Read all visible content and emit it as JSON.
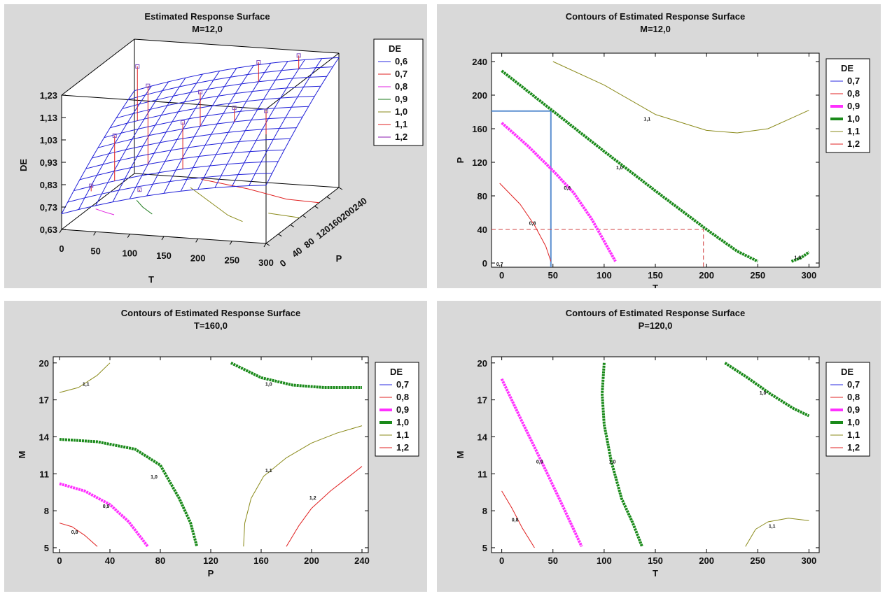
{
  "chart_data": [
    {
      "id": "surface3d",
      "type": "surface",
      "title": "Estimated Response Surface",
      "subtitle": "M=12,0",
      "xlabel": "T",
      "ylabel": "P",
      "zlabel": "DE",
      "xticks": [
        "0",
        "50",
        "100",
        "150",
        "200",
        "250",
        "300"
      ],
      "yticks": [
        "0",
        "40",
        "80",
        "120",
        "160",
        "200",
        "240"
      ],
      "zticks": [
        "0,63",
        "0,73",
        "0,83",
        "0,93",
        "1,03",
        "1,13",
        "1,23"
      ],
      "xlim": [
        0,
        300
      ],
      "ylim": [
        0,
        240
      ],
      "zlim": [
        0.63,
        1.23
      ],
      "legend": {
        "title": "DE",
        "entries": [
          {
            "label": "0,6",
            "color": "#2a2ae0"
          },
          {
            "label": "0,7",
            "color": "#e02020"
          },
          {
            "label": "0,8",
            "color": "#e020e0"
          },
          {
            "label": "0,9",
            "color": "#1a7a1a"
          },
          {
            "label": "1,0",
            "color": "#8a8a1a"
          },
          {
            "label": "1,1",
            "color": "#e02020"
          },
          {
            "label": "1,2",
            "color": "#8a1ab0"
          }
        ]
      }
    },
    {
      "id": "contourTP",
      "type": "contour",
      "title": "Contours of Estimated Response Surface",
      "subtitle": "M=12,0",
      "xlabel": "T",
      "ylabel": "P",
      "xlim": [
        -10,
        310
      ],
      "ylim": [
        -5,
        250
      ],
      "xticks": [
        0,
        50,
        100,
        150,
        200,
        250,
        300
      ],
      "yticks": [
        0,
        40,
        80,
        120,
        160,
        200,
        240
      ],
      "legend": {
        "title": "DE",
        "entries": [
          {
            "label": "0,7",
            "color": "#2a2ae0",
            "width": 1
          },
          {
            "label": "0,8",
            "color": "#e02020",
            "width": 1
          },
          {
            "label": "0,9",
            "color": "#ff30ff",
            "width": 4
          },
          {
            "label": "1,0",
            "color": "#1a8a1a",
            "width": 4
          },
          {
            "label": "1,1",
            "color": "#8a8a1a",
            "width": 1
          },
          {
            "label": "1,2",
            "color": "#e02020",
            "width": 1
          }
        ]
      },
      "contours": [
        {
          "level": "0,8",
          "color": "#e02020",
          "width": 1,
          "points": [
            [
              -2,
              95
            ],
            [
              18,
              70
            ],
            [
              32,
              45
            ],
            [
              43,
              20
            ],
            [
              48,
              2
            ]
          ],
          "label_at": [
            30,
            48
          ]
        },
        {
          "level": "0,9",
          "color": "#ff30ff",
          "width": 4,
          "points": [
            [
              0,
              167
            ],
            [
              25,
              140
            ],
            [
              50,
              110
            ],
            [
              70,
              84
            ],
            [
              88,
              52
            ],
            [
              100,
              26
            ],
            [
              111,
              2
            ]
          ],
          "label_at": [
            64,
            90
          ]
        },
        {
          "level": "1,0",
          "color": "#1a8a1a",
          "width": 4,
          "points": [
            [
              0,
              229
            ],
            [
              50,
              181
            ],
            [
              100,
              133
            ],
            [
              150,
              86
            ],
            [
              200,
              40
            ],
            [
              230,
              14
            ],
            [
              250,
              2
            ]
          ],
          "label_at": [
            115,
            114
          ]
        },
        {
          "level": "1,0",
          "color": "#1a8a1a",
          "width": 4,
          "points": [
            [
              283,
              2
            ],
            [
              292,
              6
            ],
            [
              300,
              13
            ]
          ],
          "label_at": [
            289,
            7
          ]
        },
        {
          "level": "1,1",
          "color": "#8a8a1a",
          "width": 1,
          "points": [
            [
              50,
              240
            ],
            [
              100,
              212
            ],
            [
              150,
              177
            ],
            [
              200,
              158
            ],
            [
              230,
              155
            ],
            [
              260,
              160
            ],
            [
              300,
              182
            ]
          ],
          "label_at": [
            142,
            172
          ]
        },
        {
          "level": "0,7",
          "color": "#2a2ae0",
          "width": 1,
          "points": [],
          "label_at": [
            -2,
            -1
          ]
        }
      ],
      "contour_labels": [
        {
          "text": "0,8",
          "at": [
            30,
            48
          ]
        },
        {
          "text": "0,9",
          "at": [
            64,
            90
          ]
        },
        {
          "text": "1,0",
          "at": [
            115,
            114
          ]
        },
        {
          "text": "1,0",
          "at": [
            289,
            7
          ]
        },
        {
          "text": "1,1",
          "at": [
            142,
            172
          ]
        },
        {
          "text": "0,7",
          "at": [
            -2,
            -1
          ]
        }
      ],
      "guides": [
        {
          "color": "#5b8fd0",
          "style": "solid",
          "width": 2,
          "points": [
            [
              48,
              -5
            ],
            [
              48,
              181
            ],
            [
              -10,
              181
            ]
          ]
        },
        {
          "color": "#d04040",
          "style": "dashed",
          "width": 1,
          "points": [
            [
              -10,
              40
            ],
            [
              197,
              40
            ],
            [
              197,
              -5
            ]
          ]
        }
      ]
    },
    {
      "id": "contourPM",
      "type": "contour",
      "title": "Contours of Estimated Response Surface",
      "subtitle": "T=160,0",
      "xlabel": "P",
      "ylabel": "M",
      "xlim": [
        -5,
        245
      ],
      "ylim": [
        4.6,
        20.5
      ],
      "xticks": [
        0,
        40,
        80,
        120,
        160,
        200,
        240
      ],
      "yticks": [
        5,
        8,
        11,
        14,
        17,
        20
      ],
      "legend": {
        "title": "DE",
        "entries": [
          {
            "label": "0,7",
            "color": "#2a2ae0",
            "width": 1
          },
          {
            "label": "0,8",
            "color": "#e02020",
            "width": 1
          },
          {
            "label": "0,9",
            "color": "#ff30ff",
            "width": 4
          },
          {
            "label": "1,0",
            "color": "#1a8a1a",
            "width": 4
          },
          {
            "label": "1,1",
            "color": "#8a8a1a",
            "width": 1
          },
          {
            "label": "1,2",
            "color": "#e02020",
            "width": 1
          }
        ]
      },
      "contours": [
        {
          "level": "0,8",
          "color": "#e02020",
          "width": 1,
          "points": [
            [
              0,
              7.0
            ],
            [
              10,
              6.7
            ],
            [
              20,
              6.0
            ],
            [
              30,
              5.1
            ]
          ]
        },
        {
          "level": "0,9",
          "color": "#ff30ff",
          "width": 4,
          "points": [
            [
              0,
              10.2
            ],
            [
              20,
              9.6
            ],
            [
              40,
              8.5
            ],
            [
              55,
              7.1
            ],
            [
              70,
              5.1
            ]
          ]
        },
        {
          "level": "1,0",
          "color": "#1a8a1a",
          "width": 4,
          "points": [
            [
              0,
              13.8
            ],
            [
              30,
              13.6
            ],
            [
              60,
              13.0
            ],
            [
              80,
              11.7
            ],
            [
              95,
              9.0
            ],
            [
              104,
              7.0
            ],
            [
              109,
              5.1
            ]
          ]
        },
        {
          "level": "1,0",
          "color": "#1a8a1a",
          "width": 4,
          "points": [
            [
              136,
              20.0
            ],
            [
              160,
              18.8
            ],
            [
              185,
              18.2
            ],
            [
              210,
              18.0
            ],
            [
              240,
              18.0
            ]
          ]
        },
        {
          "level": "1,1",
          "color": "#8a8a1a",
          "width": 1,
          "points": [
            [
              0,
              17.6
            ],
            [
              15,
              18.0
            ],
            [
              30,
              19.0
            ],
            [
              40,
              20.0
            ]
          ]
        },
        {
          "level": "1,1",
          "color": "#8a8a1a",
          "width": 1,
          "points": [
            [
              146,
              5.1
            ],
            [
              147,
              7.0
            ],
            [
              152,
              9.0
            ],
            [
              162,
              10.8
            ],
            [
              180,
              12.3
            ],
            [
              200,
              13.5
            ],
            [
              220,
              14.3
            ],
            [
              240,
              14.9
            ]
          ]
        },
        {
          "level": "1,2",
          "color": "#e02020",
          "width": 1,
          "points": [
            [
              180,
              5.1
            ],
            [
              190,
              6.8
            ],
            [
              200,
              8.2
            ],
            [
              215,
              9.6
            ],
            [
              230,
              10.8
            ],
            [
              240,
              11.6
            ]
          ]
        }
      ],
      "contour_labels": [
        {
          "text": "0,8",
          "at": [
            12,
            6.3
          ]
        },
        {
          "text": "0,9",
          "at": [
            37,
            8.4
          ]
        },
        {
          "text": "1,0",
          "at": [
            75,
            10.8
          ]
        },
        {
          "text": "1,0",
          "at": [
            166,
            18.3
          ]
        },
        {
          "text": "1,1",
          "at": [
            21,
            18.3
          ]
        },
        {
          "text": "1,1",
          "at": [
            166,
            11.3
          ]
        },
        {
          "text": "1,2",
          "at": [
            201,
            9.1
          ]
        }
      ],
      "guides": []
    },
    {
      "id": "contourTM",
      "type": "contour",
      "title": "Contours of Estimated Response Surface",
      "subtitle": "P=120,0",
      "xlabel": "T",
      "ylabel": "M",
      "xlim": [
        -10,
        310
      ],
      "ylim": [
        4.6,
        20.5
      ],
      "xticks": [
        0,
        50,
        100,
        150,
        200,
        250,
        300
      ],
      "yticks": [
        5,
        8,
        11,
        14,
        17,
        20
      ],
      "legend": {
        "title": "DE",
        "entries": [
          {
            "label": "0,7",
            "color": "#2a2ae0",
            "width": 1
          },
          {
            "label": "0,8",
            "color": "#e02020",
            "width": 1
          },
          {
            "label": "0,9",
            "color": "#ff30ff",
            "width": 4
          },
          {
            "label": "1,0",
            "color": "#1a8a1a",
            "width": 4
          },
          {
            "label": "1,1",
            "color": "#8a8a1a",
            "width": 1
          },
          {
            "label": "1,2",
            "color": "#e02020",
            "width": 1
          }
        ]
      },
      "contours": [
        {
          "level": "0,8",
          "color": "#e02020",
          "width": 1,
          "points": [
            [
              0,
              9.6
            ],
            [
              10,
              8.2
            ],
            [
              20,
              6.6
            ],
            [
              32,
              5.0
            ]
          ]
        },
        {
          "level": "0,9",
          "color": "#ff30ff",
          "width": 4,
          "points": [
            [
              0,
              18.7
            ],
            [
              20,
              15.2
            ],
            [
              40,
              11.8
            ],
            [
              60,
              8.3
            ],
            [
              78,
              5.1
            ]
          ]
        },
        {
          "level": "1,0",
          "color": "#1a8a1a",
          "width": 4,
          "points": [
            [
              100,
              20.0
            ],
            [
              98,
              17.5
            ],
            [
              100,
              15.0
            ],
            [
              107,
              12.0
            ],
            [
              117,
              9.0
            ],
            [
              128,
              7.0
            ],
            [
              137,
              5.1
            ]
          ]
        },
        {
          "level": "1,0",
          "color": "#1a8a1a",
          "width": 4,
          "points": [
            [
              218,
              20.0
            ],
            [
              240,
              18.8
            ],
            [
              262,
              17.5
            ],
            [
              285,
              16.3
            ],
            [
              300,
              15.7
            ]
          ]
        },
        {
          "level": "1,1",
          "color": "#8a8a1a",
          "width": 1,
          "points": [
            [
              238,
              5.1
            ],
            [
              248,
              6.5
            ],
            [
              260,
              7.1
            ],
            [
              280,
              7.4
            ],
            [
              300,
              7.2
            ]
          ]
        }
      ],
      "contour_labels": [
        {
          "text": "0,8",
          "at": [
            13,
            7.3
          ]
        },
        {
          "text": "0,9",
          "at": [
            37,
            12.0
          ]
        },
        {
          "text": "1,0",
          "at": [
            108,
            12.0
          ]
        },
        {
          "text": "1,0",
          "at": [
            255,
            17.6
          ]
        },
        {
          "text": "1,1",
          "at": [
            264,
            6.8
          ]
        }
      ],
      "guides": []
    }
  ]
}
